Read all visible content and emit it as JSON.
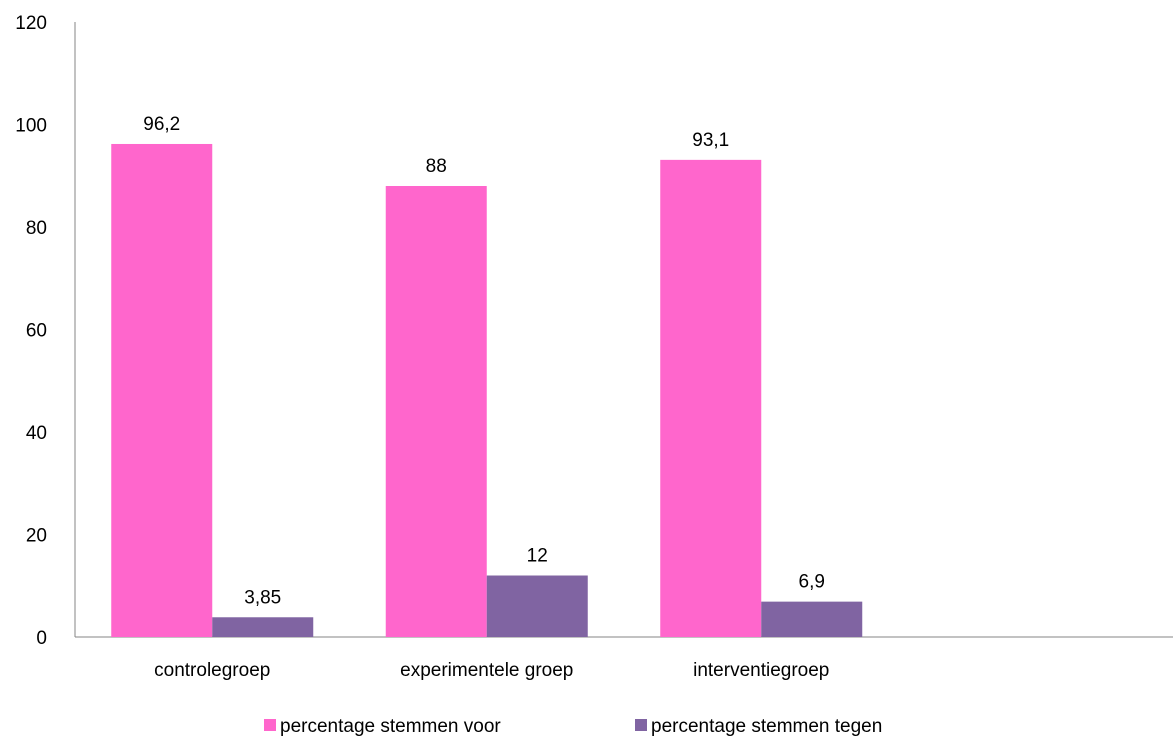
{
  "chart_data": {
    "type": "bar",
    "categories": [
      "controlegroep",
      "experimentele groep",
      "interventiegroep"
    ],
    "series": [
      {
        "name": "percentage stemmen voor",
        "values": [
          96.2,
          88,
          93.1
        ],
        "labels": [
          "96,2",
          "88",
          "93,1"
        ],
        "color": "#ff66cc"
      },
      {
        "name": "percentage stemmen tegen",
        "values": [
          3.85,
          12,
          6.9
        ],
        "labels": [
          "3,85",
          "12",
          "6,9"
        ],
        "color": "#8064a2"
      }
    ],
    "yticks": [
      "0",
      "20",
      "40",
      "60",
      "80",
      "100",
      "120"
    ],
    "ylim": [
      0,
      120
    ],
    "slots": 4,
    "title": "",
    "xlabel": "",
    "ylabel": "",
    "legend": "bottom",
    "grid": false
  }
}
